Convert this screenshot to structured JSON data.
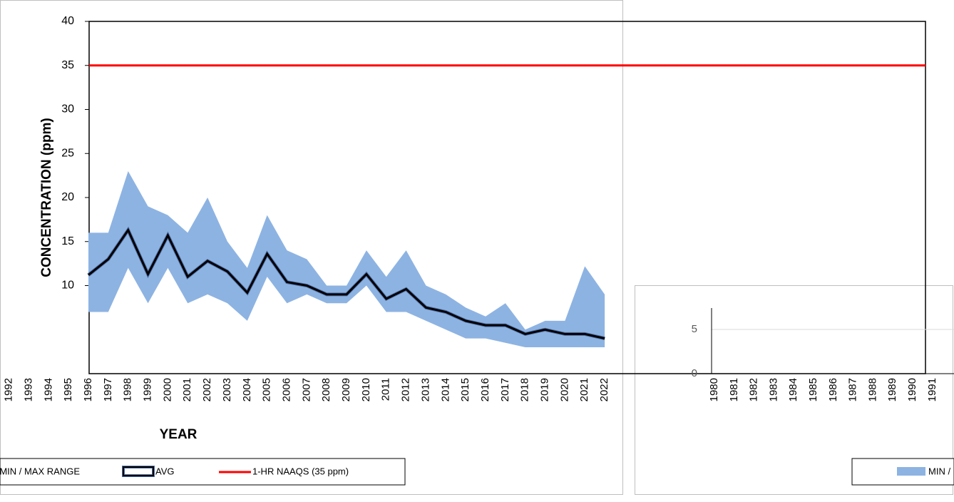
{
  "chart_data": [
    {
      "type": "range-line",
      "ylabel": "CONCENTRATION (ppm)",
      "xlabel": "YEAR",
      "categories": [
        "1992",
        "1993",
        "1994",
        "1995",
        "1996",
        "1997",
        "1998",
        "1999",
        "2000",
        "2001",
        "2002",
        "2003",
        "2004",
        "2005",
        "2006",
        "2007",
        "2008",
        "2009",
        "2010",
        "2011",
        "2012",
        "2013",
        "2014",
        "2015",
        "2016",
        "2017",
        "2018",
        "2019",
        "2020",
        "2021",
        "2022"
      ],
      "ylim": [
        0,
        40
      ],
      "yticks": [
        10,
        15,
        20,
        25,
        30,
        35,
        40
      ],
      "series": [
        {
          "name": "MIN / MAX RANGE",
          "color": "#8db3e2",
          "values": [
            null,
            null,
            null,
            null,
            16,
            16,
            23,
            19,
            18,
            16,
            20,
            15,
            12,
            18,
            14,
            13,
            10,
            10,
            14,
            11,
            14,
            10,
            9,
            7.5,
            6.5,
            8,
            5,
            6,
            6,
            12.2,
            9
          ],
          "lower": [
            null,
            null,
            null,
            null,
            7,
            7,
            12,
            8,
            12,
            8,
            9,
            8,
            6,
            11,
            8,
            9,
            8,
            8,
            10,
            7,
            7,
            6,
            5,
            4,
            4,
            3.5,
            3,
            3,
            3,
            3,
            3
          ]
        },
        {
          "name": "AVG",
          "color": "#000000",
          "values": [
            null,
            null,
            null,
            null,
            11.2,
            13,
            16.3,
            11.3,
            15.7,
            11,
            12.8,
            11.6,
            9.2,
            13.6,
            10.4,
            10,
            9,
            9,
            11.3,
            8.5,
            9.6,
            7.5,
            7,
            6,
            5.5,
            5.5,
            4.5,
            5,
            4.5,
            4.5,
            4
          ]
        },
        {
          "name": "1-HR NAAQS (35 ppm)",
          "color": "#ff0000",
          "value": 35
        }
      ]
    },
    {
      "type": "range-line",
      "categories": [
        "1980",
        "1981",
        "1982",
        "1983",
        "1984",
        "1985",
        "1986",
        "1987",
        "1988",
        "1989",
        "1990",
        "1991"
      ],
      "yticks": [
        0,
        5
      ],
      "series": [
        {
          "name": "MIN / MAX RANGE",
          "color": "#8db3e2"
        }
      ]
    }
  ]
}
